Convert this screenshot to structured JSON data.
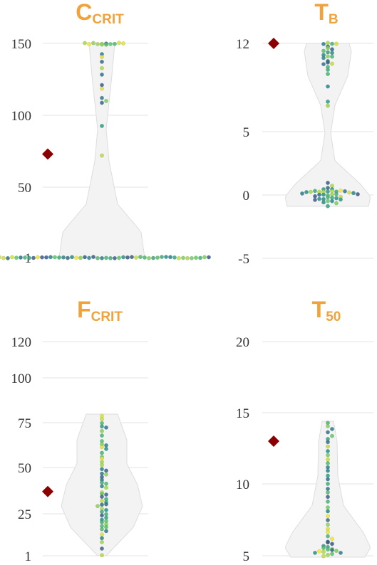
{
  "chart_data": [
    {
      "type": "violin-swarm",
      "title": "C",
      "title_sub": "CRIT",
      "yticks": [
        1,
        50,
        100,
        150
      ],
      "ytick_labels": [
        "1",
        "50",
        "100",
        "150"
      ],
      "ylim": [
        1,
        150
      ],
      "marker_value": 73,
      "points": [
        150,
        150,
        150,
        150,
        150,
        150,
        150,
        150,
        150,
        150,
        149,
        149,
        143,
        141,
        137,
        133,
        128,
        121,
        119,
        112,
        110,
        109,
        93,
        72,
        1,
        1,
        1,
        1,
        1,
        1,
        1,
        1,
        1,
        1,
        1,
        1,
        1,
        1,
        1,
        1,
        1,
        1,
        1,
        1,
        1,
        1,
        1,
        1,
        1,
        1,
        1,
        1,
        1,
        1,
        1,
        1,
        1,
        1,
        1,
        1,
        1,
        1,
        1,
        1,
        1,
        1,
        1,
        1,
        1,
        1,
        1,
        1,
        1,
        1
      ]
    },
    {
      "type": "violin-swarm",
      "title": "T",
      "title_sub": "B",
      "yticks": [
        -5,
        0,
        5,
        12
      ],
      "ytick_labels": [
        "-5",
        "0",
        "5",
        "12"
      ],
      "ylim": [
        -5,
        12
      ],
      "marker_value": 12,
      "points": [
        12,
        12,
        12,
        12,
        11.8,
        11.6,
        11.5,
        11.4,
        11.3,
        11.2,
        11.1,
        11,
        10.9,
        10.8,
        10.6,
        10.5,
        10.4,
        10.3,
        10.1,
        9.9,
        9.6,
        8.6,
        7.4,
        7.1,
        0.9,
        0.7,
        0.6,
        0.5,
        0.4,
        0.3,
        0.3,
        0.3,
        0.3,
        0.3,
        0.3,
        0.3,
        0.3,
        0.2,
        0.2,
        0.2,
        0.1,
        0.1,
        0.1,
        0,
        0,
        0,
        0,
        0,
        -0.1,
        -0.1,
        -0.2,
        -0.2,
        -0.3,
        -0.3,
        -0.3,
        -0.4,
        -0.4,
        -0.5,
        -0.5,
        -0.6,
        -0.7,
        -0.9
      ]
    },
    {
      "type": "violin-swarm",
      "title": "F",
      "title_sub": "CRIT",
      "yticks": [
        1,
        25,
        50,
        75,
        100,
        120
      ],
      "ytick_labels": [
        "1",
        "25",
        "50",
        "75",
        "100",
        "120"
      ],
      "ylim": [
        1,
        120
      ],
      "marker_value": 37,
      "points": [
        79,
        77,
        75,
        73,
        72,
        70,
        68,
        65,
        63,
        62,
        61,
        60,
        58,
        56,
        55,
        53,
        51,
        49,
        48,
        47,
        46,
        45,
        43,
        42,
        41,
        40,
        39,
        37,
        36,
        35,
        34,
        33,
        32,
        31,
        30,
        30,
        29,
        28,
        27,
        26,
        25,
        24,
        23,
        22,
        21,
        20,
        19,
        18,
        17,
        16,
        15,
        13,
        11,
        9,
        5,
        1
      ]
    },
    {
      "type": "violin-swarm",
      "title": "T",
      "title_sub": "50",
      "yticks": [
        5,
        10,
        15,
        20
      ],
      "ytick_labels": [
        "5",
        "10",
        "15",
        "20"
      ],
      "ylim": [
        5,
        20
      ],
      "marker_value": 13,
      "points": [
        14.3,
        14.1,
        13.9,
        13.6,
        13.4,
        13.2,
        12.9,
        12.6,
        12.3,
        12.0,
        11.7,
        11.5,
        11.2,
        10.9,
        10.6,
        10.3,
        10.0,
        9.7,
        9.4,
        9.1,
        8.8,
        8.4,
        8.1,
        7.8,
        7.5,
        7.2,
        6.9,
        6.6,
        6.4,
        6.2,
        6.0,
        5.9,
        5.8,
        5.7,
        5.6,
        5.5,
        5.5,
        5.4,
        5.4,
        5.3,
        5.3,
        5.3,
        5.2,
        5.2,
        5.1,
        5.1,
        5.0
      ]
    }
  ],
  "colors": {
    "title": "#f2a23a",
    "marker": "#8b0000",
    "gridline": "#e3e3e3",
    "violin_fill": "#f3f3f3",
    "violin_stroke": "#dddddd",
    "point_scale": [
      "#3b528b",
      "#21918c",
      "#5ec962",
      "#fde725"
    ]
  }
}
